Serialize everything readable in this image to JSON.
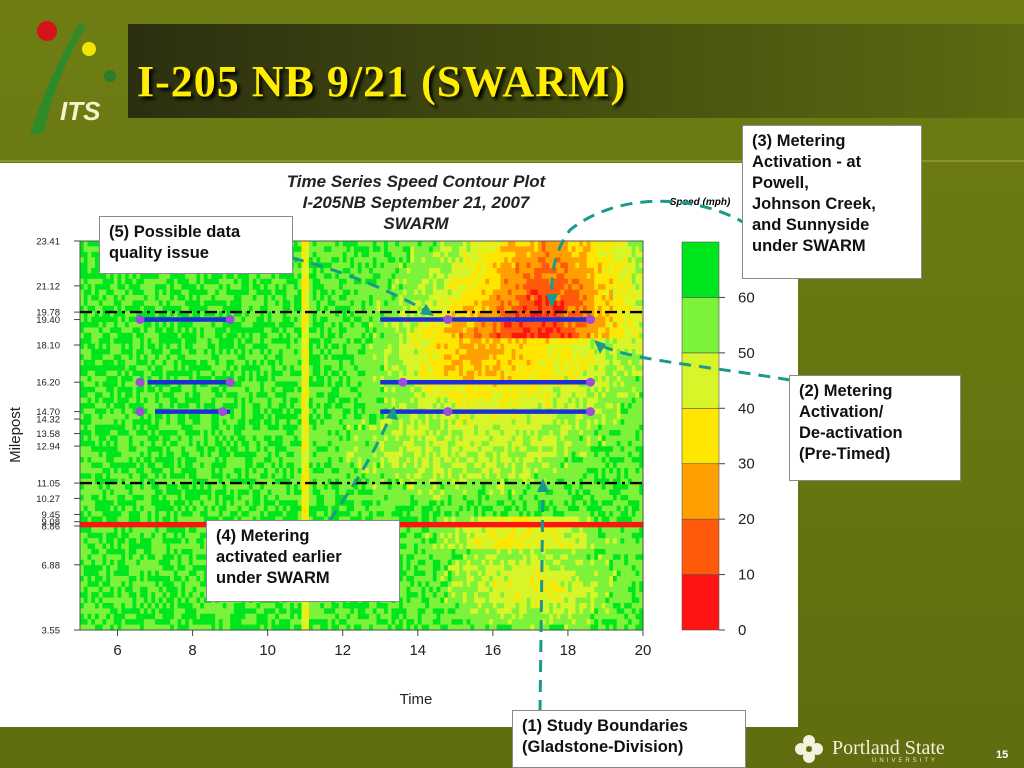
{
  "slide": {
    "title": "I-205 NB 9/21 (SWARM)",
    "logo_text": "ITS",
    "footer": {
      "org": "Portland State",
      "sub": "UNIVERSITY",
      "page": "15"
    },
    "colors": {
      "background": "#687611",
      "title": "#ffee00",
      "callout_line": "#1a9a8a",
      "boundary_line": "#000000",
      "metering_line": "#1f2fd6",
      "metering_dot": "#9b4fd6"
    }
  },
  "callouts": {
    "c1": "(1) Study Boundaries\n(Gladstone-Division)",
    "c2": "(2) Metering\nActivation/\nDe-activation\n(Pre-Timed)",
    "c3": "(3) Metering\nActivation - at\nPowell,\nJohnson Creek,\nand Sunnyside\nunder SWARM",
    "c4": "(4) Metering\nactivated earlier\nunder SWARM",
    "c5": "(5) Possible data\nquality issue"
  },
  "chart_data": {
    "type": "heatmap",
    "title": "Time Series Speed Contour Plot\nI-205NB September 21, 2007\nSWARM",
    "xlabel": "Time",
    "ylabel": "Milepost",
    "xlim": [
      5,
      20
    ],
    "ylim": [
      3.55,
      23.41
    ],
    "x_ticks": [
      6,
      8,
      10,
      12,
      14,
      16,
      18,
      20
    ],
    "y_ticks": [
      23.41,
      21.12,
      19.78,
      19.4,
      18.1,
      16.2,
      14.7,
      14.32,
      13.58,
      12.94,
      11.05,
      10.27,
      9.45,
      9.08,
      8.86,
      6.88,
      3.55
    ],
    "colorbar": {
      "label": "Speed (mph)",
      "ticks": [
        0,
        10,
        20,
        30,
        40,
        50,
        60
      ],
      "range": [
        0,
        70
      ],
      "bands": [
        {
          "from": 0,
          "to": 10,
          "color": "#ff1414"
        },
        {
          "from": 10,
          "to": 20,
          "color": "#ff5a0a"
        },
        {
          "from": 20,
          "to": 30,
          "color": "#ffa000"
        },
        {
          "from": 30,
          "to": 40,
          "color": "#ffe600"
        },
        {
          "from": 40,
          "to": 50,
          "color": "#d8f52a"
        },
        {
          "from": 50,
          "to": 60,
          "color": "#7cf23a"
        },
        {
          "from": 60,
          "to": 70,
          "color": "#00e61e"
        }
      ]
    },
    "study_boundaries": [
      19.78,
      11.05
    ],
    "metering": [
      {
        "milepost": 19.4,
        "segments": [
          [
            6.6,
            9.0
          ],
          [
            13.0,
            18.6
          ]
        ],
        "dots": [
          6.6,
          9.0,
          14.8,
          18.6
        ]
      },
      {
        "milepost": 16.2,
        "segments": [
          [
            6.8,
            9.0
          ],
          [
            13.0,
            18.6
          ]
        ],
        "dots": [
          6.6,
          9.0,
          13.6,
          18.6
        ]
      },
      {
        "milepost": 14.7,
        "segments": [
          [
            7.0,
            9.0
          ],
          [
            13.0,
            18.6
          ]
        ],
        "dots": [
          6.6,
          8.8,
          14.8,
          18.6
        ]
      }
    ]
  }
}
